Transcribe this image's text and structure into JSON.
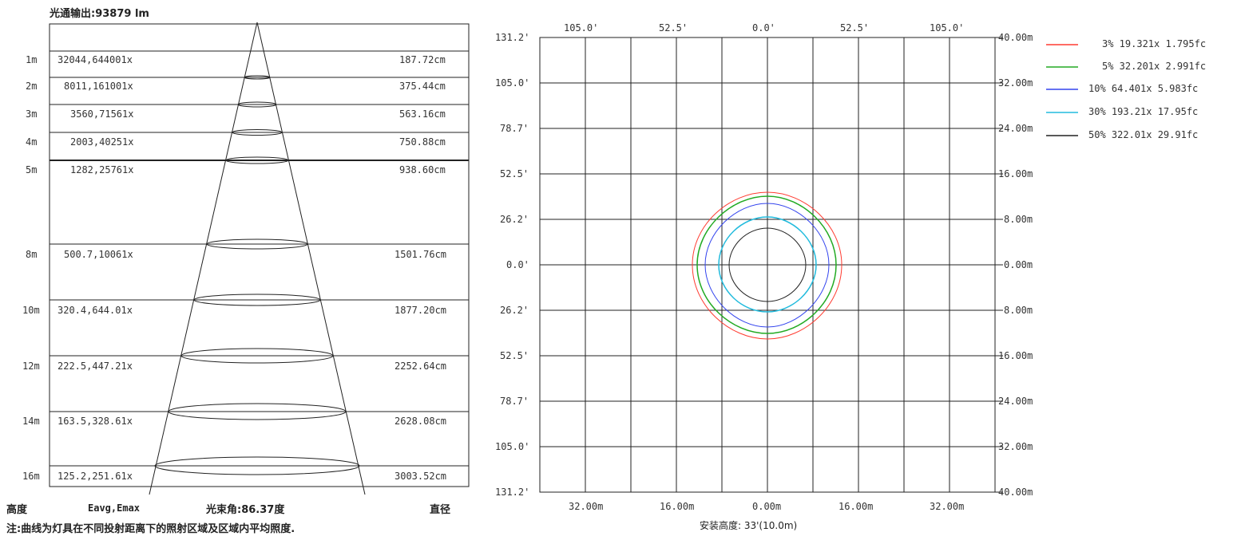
{
  "left_panel": {
    "flux_output": "光通输出:93879 lm",
    "rows": [
      {
        "height": "1m",
        "eavg_emax": "32044,644001x",
        "diameter": "187.72cm"
      },
      {
        "height": "2m",
        "eavg_emax": "8011,161001x",
        "diameter": "375.44cm"
      },
      {
        "height": "3m",
        "eavg_emax": "3560,71561x",
        "diameter": "563.16cm"
      },
      {
        "height": "4m",
        "eavg_emax": "2003,40251x",
        "diameter": "750.88cm"
      },
      {
        "height": "5m",
        "eavg_emax": "1282,25761x",
        "diameter": "938.60cm"
      },
      {
        "height": "8m",
        "eavg_emax": "500.7,10061x",
        "diameter": "1501.76cm"
      },
      {
        "height": "10m",
        "eavg_emax": "320.4,644.01x",
        "diameter": "1877.20cm"
      },
      {
        "height": "12m",
        "eavg_emax": "222.5,447.21x",
        "diameter": "2252.64cm"
      },
      {
        "height": "14m",
        "eavg_emax": "163.5,328.61x",
        "diameter": "2628.08cm"
      },
      {
        "height": "16m",
        "eavg_emax": "125.2,251.61x",
        "diameter": "3003.52cm"
      }
    ],
    "footer_height": "高度",
    "footer_eavg": "Eavg,Emax",
    "footer_beam_angle": "光束角:86.37度",
    "footer_diameter": "直径",
    "note": "注:曲线为灯具在不同投射距离下的照射区域及区域内平均照度."
  },
  "right_panel": {
    "top_ticks": [
      "105.0'",
      "52.5'",
      "0.0'",
      "52.5'",
      "105.0'"
    ],
    "bottom_ticks": [
      "32.00m",
      "16.00m",
      "0.00m",
      "16.00m",
      "32.00m"
    ],
    "left_ticks": [
      "131.2'",
      "105.0'",
      "78.7'",
      "52.5'",
      "26.2'",
      "0.0'",
      "26.2'",
      "52.5'",
      "78.7'",
      "105.0'",
      "131.2'"
    ],
    "right_ticks": [
      "40.00m",
      "32.00m",
      "24.00m",
      "16.00m",
      "8.00m",
      "0.00m",
      "8.00m",
      "16.00m",
      "24.00m",
      "32.00m",
      "40.00m"
    ],
    "install_height": "安装高度: 33'(10.0m)",
    "legend": [
      {
        "label": "3% 19.321x 1.795fc",
        "color": "#ff3b30"
      },
      {
        "label": "5% 32.201x 2.991fc",
        "color": "#22aa22"
      },
      {
        "label": "10% 64.401x 5.983fc",
        "color": "#3344ee"
      },
      {
        "label": "30% 193.21x 17.95fc",
        "color": "#22bbdd"
      },
      {
        "label": "50% 322.01x 29.91fc",
        "color": "#222222"
      }
    ]
  }
}
